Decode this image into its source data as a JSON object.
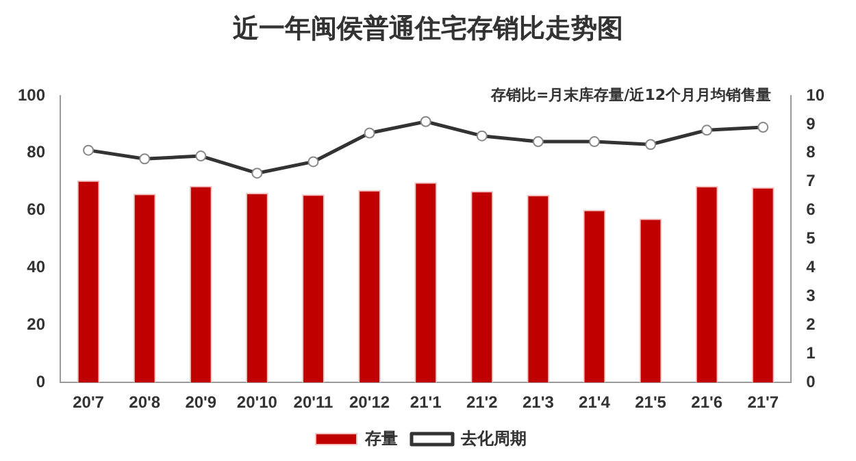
{
  "chart_data": {
    "type": "bar",
    "title": "近一年闽侯普通住宅存销比走势图",
    "annotations": [
      "存销比=月末库存量/近12个月月均销售量"
    ],
    "categories": [
      "20'7",
      "20'8",
      "20'9",
      "20'10",
      "20'11",
      "20'12",
      "21'1",
      "21'2",
      "21'3",
      "21'4",
      "21'5",
      "21'6",
      "21'7"
    ],
    "series": [
      {
        "name": "存量",
        "color": "#c00000",
        "values": [
          70.5,
          65.8,
          68.6,
          66.1,
          65.6,
          67.1,
          69.8,
          66.8,
          65.4,
          60.2,
          57.2,
          68.5,
          68.1
        ]
      },
      {
        "name": "去化周期",
        "type": "line",
        "axis": "y2",
        "color": "#333333",
        "marker": "circle",
        "values": [
          8.1,
          7.8,
          7.9,
          7.3,
          7.7,
          8.7,
          9.1,
          8.6,
          8.4,
          8.4,
          8.3,
          8.8,
          8.9
        ]
      }
    ],
    "ylim": [
      0,
      100
    ],
    "yticks": [
      0,
      20,
      40,
      60,
      80,
      100
    ],
    "y2lim": [
      0,
      10
    ],
    "y2ticks": [
      0,
      1,
      2,
      3,
      4,
      5,
      6,
      7,
      8,
      9,
      10
    ],
    "grid": false,
    "legend": "bottom"
  }
}
